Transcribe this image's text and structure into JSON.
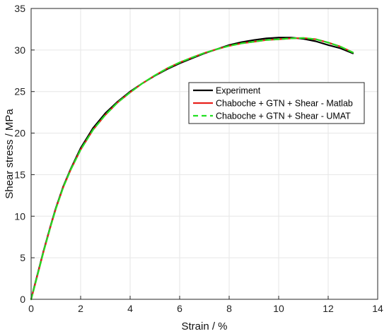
{
  "chart_data": {
    "type": "line",
    "xlabel": "Strain / %",
    "ylabel": "Shear stress / MPa",
    "xlim": [
      0,
      14
    ],
    "ylim": [
      0,
      35
    ],
    "xticks": [
      0,
      2,
      4,
      6,
      8,
      10,
      12,
      14
    ],
    "yticks": [
      0,
      5,
      10,
      15,
      20,
      25,
      30,
      35
    ],
    "grid": true,
    "legend_position": "center-right",
    "series": [
      {
        "name": "Experiment",
        "color": "#000000",
        "style": "solid",
        "x": [
          0,
          0.1,
          0.3,
          0.5,
          0.8,
          1.0,
          1.3,
          1.6,
          2.0,
          2.5,
          3.0,
          3.5,
          4.0,
          4.5,
          5.0,
          5.5,
          6.0,
          6.5,
          7.0,
          7.5,
          8.0,
          8.5,
          9.0,
          9.5,
          10.0,
          10.5,
          11.0,
          11.5,
          12.0,
          12.5,
          13.0
        ],
        "y": [
          0,
          1.2,
          3.5,
          5.8,
          9.0,
          11.0,
          13.6,
          15.7,
          18.2,
          20.6,
          22.4,
          23.8,
          25.0,
          26.0,
          26.9,
          27.7,
          28.4,
          29.0,
          29.6,
          30.1,
          30.6,
          30.95,
          31.2,
          31.4,
          31.5,
          31.5,
          31.35,
          31.05,
          30.6,
          30.2,
          29.6
        ]
      },
      {
        "name": "Chaboche + GTN + Shear - Matlab",
        "color": "#e8201c",
        "style": "solid",
        "x": [
          0,
          0.1,
          0.3,
          0.5,
          0.8,
          1.0,
          1.3,
          1.6,
          2.0,
          2.5,
          3.0,
          3.5,
          4.0,
          4.5,
          5.0,
          5.5,
          6.0,
          6.5,
          7.0,
          7.5,
          8.0,
          8.5,
          9.0,
          9.5,
          10.0,
          10.5,
          11.0,
          11.5,
          12.0,
          12.5,
          13.0
        ],
        "y": [
          0,
          1.1,
          3.4,
          5.7,
          8.9,
          10.9,
          13.5,
          15.6,
          18.0,
          20.4,
          22.2,
          23.7,
          24.9,
          26.0,
          26.95,
          27.8,
          28.5,
          29.1,
          29.65,
          30.1,
          30.5,
          30.8,
          31.0,
          31.2,
          31.3,
          31.4,
          31.45,
          31.3,
          30.9,
          30.4,
          29.7
        ]
      },
      {
        "name": "Chaboche + GTN + Shear - UMAT",
        "color": "#22e022",
        "style": "dashed",
        "x": [
          0,
          0.1,
          0.3,
          0.5,
          0.8,
          1.0,
          1.3,
          1.6,
          2.0,
          2.5,
          3.0,
          3.5,
          4.0,
          4.5,
          5.0,
          5.5,
          6.0,
          6.5,
          7.0,
          7.5,
          8.0,
          8.5,
          9.0,
          9.5,
          10.0,
          10.5,
          11.0,
          11.5,
          12.0,
          12.5,
          13.0
        ],
        "y": [
          0,
          1.1,
          3.4,
          5.7,
          8.9,
          10.9,
          13.5,
          15.6,
          18.0,
          20.4,
          22.2,
          23.7,
          24.9,
          26.0,
          26.95,
          27.8,
          28.5,
          29.1,
          29.65,
          30.1,
          30.5,
          30.8,
          31.0,
          31.2,
          31.3,
          31.4,
          31.45,
          31.3,
          30.9,
          30.4,
          29.7
        ]
      }
    ]
  }
}
